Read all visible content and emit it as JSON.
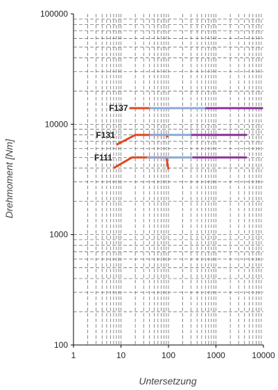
{
  "chart_data": {
    "type": "line",
    "title": "",
    "xlabel": "Untersetzung",
    "ylabel": "Drehmoment [Nm]",
    "x_scale": "log",
    "y_scale": "log",
    "xlim": [
      1,
      10000
    ],
    "ylim": [
      100,
      100000
    ],
    "x_ticks": [
      {
        "value": 1,
        "label": "1"
      },
      {
        "value": 10,
        "label": "10"
      },
      {
        "value": 100,
        "label": "100"
      },
      {
        "value": 1000,
        "label": "1000"
      },
      {
        "value": 10000,
        "label": "10000"
      }
    ],
    "y_ticks": [
      {
        "value": 100,
        "label": "100"
      },
      {
        "value": 1000,
        "label": "1000"
      },
      {
        "value": 10000,
        "label": "10000"
      },
      {
        "value": 100000,
        "label": "100000"
      }
    ],
    "grid": true,
    "colors": {
      "segment_1": "#e0471f",
      "segment_2": "#8aa9d6",
      "segment_3": "#8b2f9a"
    },
    "series": [
      {
        "name": "F137",
        "segments": [
          {
            "color": "#e0471f",
            "points": [
              [
                15,
                14000
              ],
              [
                40,
                14000
              ]
            ]
          },
          {
            "color": "#8aa9d6",
            "points": [
              [
                40,
                14000
              ],
              [
                600,
                14000
              ]
            ]
          },
          {
            "color": "#8b2f9a",
            "points": [
              [
                600,
                14000
              ],
              [
                9800,
                14000
              ]
            ]
          }
        ]
      },
      {
        "name": "F131",
        "segments": [
          {
            "color": "#e0471f",
            "points": [
              [
                8,
                6500
              ],
              [
                20,
                8000
              ],
              [
                90,
                8000
              ],
              [
                95,
                7600
              ]
            ]
          },
          {
            "color": "#8aa9d6",
            "points": [
              [
                40,
                8000
              ],
              [
                300,
                8000
              ]
            ]
          },
          {
            "color": "#8b2f9a",
            "points": [
              [
                300,
                8000
              ],
              [
                4500,
                8000
              ]
            ]
          }
        ]
      },
      {
        "name": "F111",
        "segments": [
          {
            "color": "#e0471f",
            "points": [
              [
                7,
                4000
              ],
              [
                17,
                5000
              ],
              [
                90,
                5000
              ],
              [
                100,
                3900
              ]
            ]
          },
          {
            "color": "#8aa9d6",
            "points": [
              [
                35,
                5000
              ],
              [
                320,
                5000
              ]
            ]
          },
          {
            "color": "#8b2f9a",
            "points": [
              [
                320,
                5000
              ],
              [
                4500,
                5000
              ]
            ]
          }
        ]
      }
    ]
  }
}
